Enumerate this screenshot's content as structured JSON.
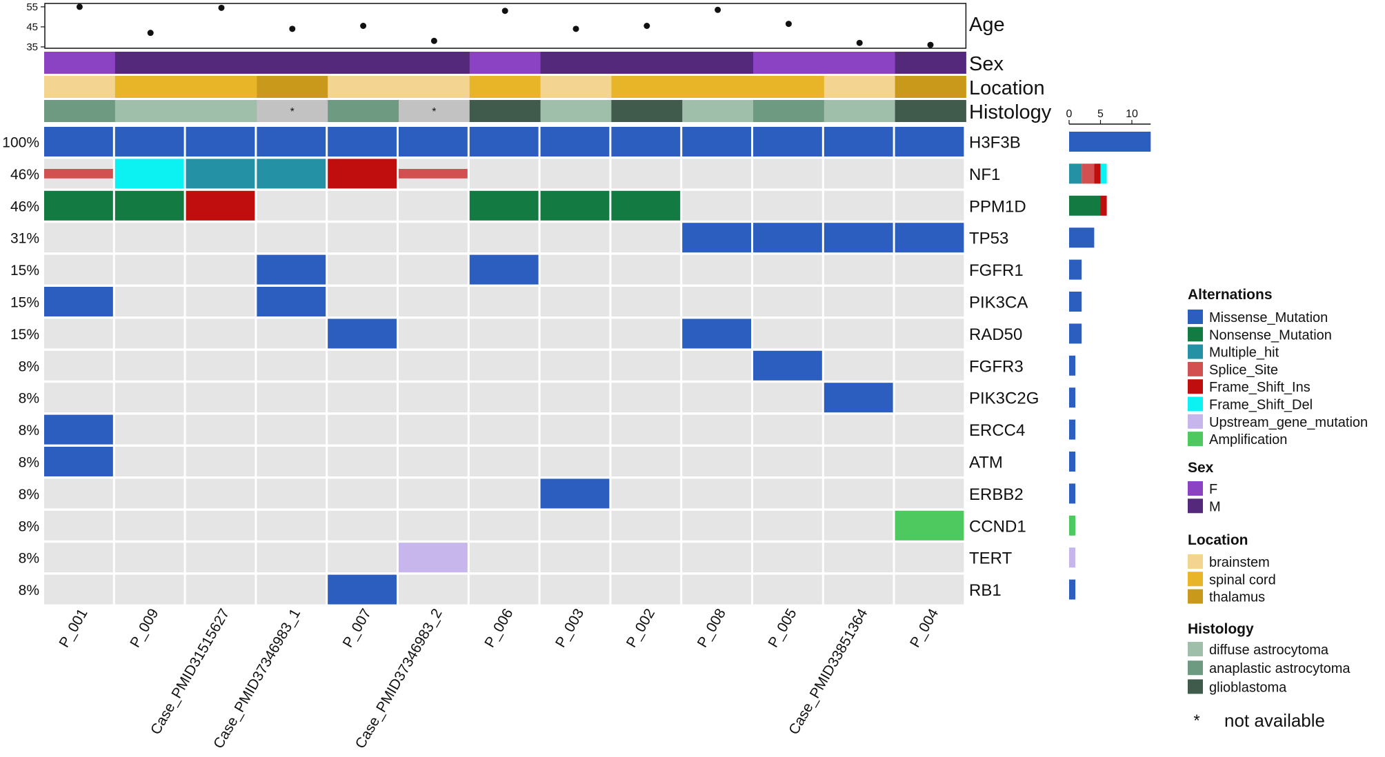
{
  "chart_data": {
    "type": "heatmap",
    "title": "",
    "samples": [
      "P_001",
      "P_009",
      "Case_PMID31515627",
      "Case_PMID37346983_1",
      "P_007",
      "Case_PMID37346983_2",
      "P_006",
      "P_003",
      "P_002",
      "P_008",
      "P_005",
      "Case_PMID33851364",
      "P_004"
    ],
    "age": {
      "label": "Age",
      "ticks": [
        35,
        45,
        55
      ],
      "ylim": [
        35,
        56
      ],
      "values": [
        55,
        42,
        54.5,
        44,
        45.5,
        38,
        53,
        44,
        45.5,
        53.5,
        46.5,
        37,
        36
      ]
    },
    "annotations": [
      {
        "label": "Sex",
        "values": [
          "F",
          "M",
          "M",
          "M",
          "M",
          "M",
          "F",
          "M",
          "M",
          "M",
          "F",
          "F",
          "M"
        ]
      },
      {
        "label": "Location",
        "values": [
          "brainstem",
          "spinal cord",
          "spinal cord",
          "thalamus",
          "brainstem",
          "brainstem",
          "spinal cord",
          "brainstem",
          "spinal cord",
          "spinal cord",
          "spinal cord",
          "brainstem",
          "thalamus"
        ]
      },
      {
        "label": "Histology",
        "values": [
          "anaplastic astrocytoma",
          "diffuse astrocytoma",
          "diffuse astrocytoma",
          "NA",
          "anaplastic astrocytoma",
          "NA",
          "glioblastoma",
          "diffuse astrocytoma",
          "glioblastoma",
          "diffuse astrocytoma",
          "anaplastic astrocytoma",
          "diffuse astrocytoma",
          "glioblastoma"
        ]
      }
    ],
    "na_marker": "*",
    "genes": [
      {
        "name": "H3F3B",
        "percent": "100%",
        "alts": [
          "Missense_Mutation",
          "Missense_Mutation",
          "Missense_Mutation",
          "Missense_Mutation",
          "Missense_Mutation",
          "Missense_Mutation",
          "Missense_Mutation",
          "Missense_Mutation",
          "Missense_Mutation",
          "Missense_Mutation",
          "Missense_Mutation",
          "Missense_Mutation",
          "Missense_Mutation"
        ]
      },
      {
        "name": "NF1",
        "percent": "46%",
        "alts": [
          "Splice_Site",
          "Frame_Shift_Del",
          "Multiple_hit",
          "Multiple_hit",
          "Frame_Shift_Ins",
          "Splice_Site",
          "",
          "",
          "",
          "",
          "",
          "",
          ""
        ]
      },
      {
        "name": "PPM1D",
        "percent": "46%",
        "alts": [
          "Nonsense_Mutation",
          "Nonsense_Mutation",
          "Frame_Shift_Ins",
          "",
          "",
          "",
          "Nonsense_Mutation",
          "Nonsense_Mutation",
          "Nonsense_Mutation",
          "",
          "",
          "",
          ""
        ]
      },
      {
        "name": "TP53",
        "percent": "31%",
        "alts": [
          "",
          "",
          "",
          "",
          "",
          "",
          "",
          "",
          "",
          "Missense_Mutation",
          "Missense_Mutation",
          "Missense_Mutation",
          "Missense_Mutation"
        ]
      },
      {
        "name": "FGFR1",
        "percent": "15%",
        "alts": [
          "",
          "",
          "",
          "Missense_Mutation",
          "",
          "",
          "Missense_Mutation",
          "",
          "",
          "",
          "",
          "",
          ""
        ]
      },
      {
        "name": "PIK3CA",
        "percent": "15%",
        "alts": [
          "Missense_Mutation",
          "",
          "",
          "Missense_Mutation",
          "",
          "",
          "",
          "",
          "",
          "",
          "",
          "",
          ""
        ]
      },
      {
        "name": "RAD50",
        "percent": "15%",
        "alts": [
          "",
          "",
          "",
          "",
          "Missense_Mutation",
          "",
          "",
          "",
          "",
          "Missense_Mutation",
          "",
          "",
          ""
        ]
      },
      {
        "name": "FGFR3",
        "percent": "8%",
        "alts": [
          "",
          "",
          "",
          "",
          "",
          "",
          "",
          "",
          "",
          "",
          "Missense_Mutation",
          "",
          ""
        ]
      },
      {
        "name": "PIK3C2G",
        "percent": "8%",
        "alts": [
          "",
          "",
          "",
          "",
          "",
          "",
          "",
          "",
          "",
          "",
          "",
          "Missense_Mutation",
          ""
        ]
      },
      {
        "name": "ERCC4",
        "percent": "8%",
        "alts": [
          "Missense_Mutation",
          "",
          "",
          "",
          "",
          "",
          "",
          "",
          "",
          "",
          "",
          "",
          ""
        ]
      },
      {
        "name": "ATM",
        "percent": "8%",
        "alts": [
          "Missense_Mutation",
          "",
          "",
          "",
          "",
          "",
          "",
          "",
          "",
          "",
          "",
          "",
          ""
        ]
      },
      {
        "name": "ERBB2",
        "percent": "8%",
        "alts": [
          "",
          "",
          "",
          "",
          "",
          "",
          "",
          "Missense_Mutation",
          "",
          "",
          "",
          "",
          ""
        ]
      },
      {
        "name": "CCND1",
        "percent": "8%",
        "alts": [
          "",
          "",
          "",
          "",
          "",
          "",
          "",
          "",
          "",
          "",
          "",
          "",
          "Amplification"
        ]
      },
      {
        "name": "TERT",
        "percent": "8%",
        "alts": [
          "",
          "",
          "",
          "",
          "",
          "Upstream_gene_mutation",
          "",
          "",
          "",
          "",
          "",
          "",
          ""
        ]
      },
      {
        "name": "RB1",
        "percent": "8%",
        "alts": [
          "",
          "",
          "",
          "",
          "Missense_Mutation",
          "",
          "",
          "",
          "",
          "",
          "",
          "",
          ""
        ]
      }
    ],
    "bar_axis": {
      "ticks": [
        0,
        5,
        10
      ],
      "xlim": [
        0,
        13
      ]
    },
    "legends": [
      {
        "key": "alterations",
        "title": "Alternations",
        "items": [
          "Missense_Mutation",
          "Nonsense_Mutation",
          "Multiple_hit",
          "Splice_Site",
          "Frame_Shift_Ins",
          "Frame_Shift_Del",
          "Upstream_gene_mutation",
          "Amplification"
        ]
      },
      {
        "key": "sex",
        "title": "Sex",
        "items": [
          "F",
          "M"
        ]
      },
      {
        "key": "location",
        "title": "Location",
        "items": [
          "brainstem",
          "spinal cord",
          "thalamus"
        ]
      },
      {
        "key": "histology",
        "title": "Histology",
        "items": [
          "diffuse astrocytoma",
          "anaplastic astrocytoma",
          "glioblastoma"
        ]
      }
    ],
    "na_note": {
      "symbol": "*",
      "text": "not available"
    },
    "colors": {
      "Missense_Mutation": "#2b5ebf",
      "Nonsense_Mutation": "#137a41",
      "Multiple_hit": "#2591a4",
      "Splice_Site": "#d2504f",
      "Frame_Shift_Ins": "#c00d0d",
      "Frame_Shift_Del": "#0cf2f2",
      "Upstream_gene_mutation": "#c7b6ec",
      "Amplification": "#4ec95f",
      "F": "#8b43c3",
      "M": "#54287a",
      "brainstem": "#f3d491",
      "spinal cord": "#e8b528",
      "thalamus": "#c9991b",
      "diffuse astrocytoma": "#9fbfab",
      "anaplastic astrocytoma": "#6f9a82",
      "glioblastoma": "#405a4b",
      "NA": "#c2c2c2",
      "empty": "#e5e5e5"
    }
  }
}
